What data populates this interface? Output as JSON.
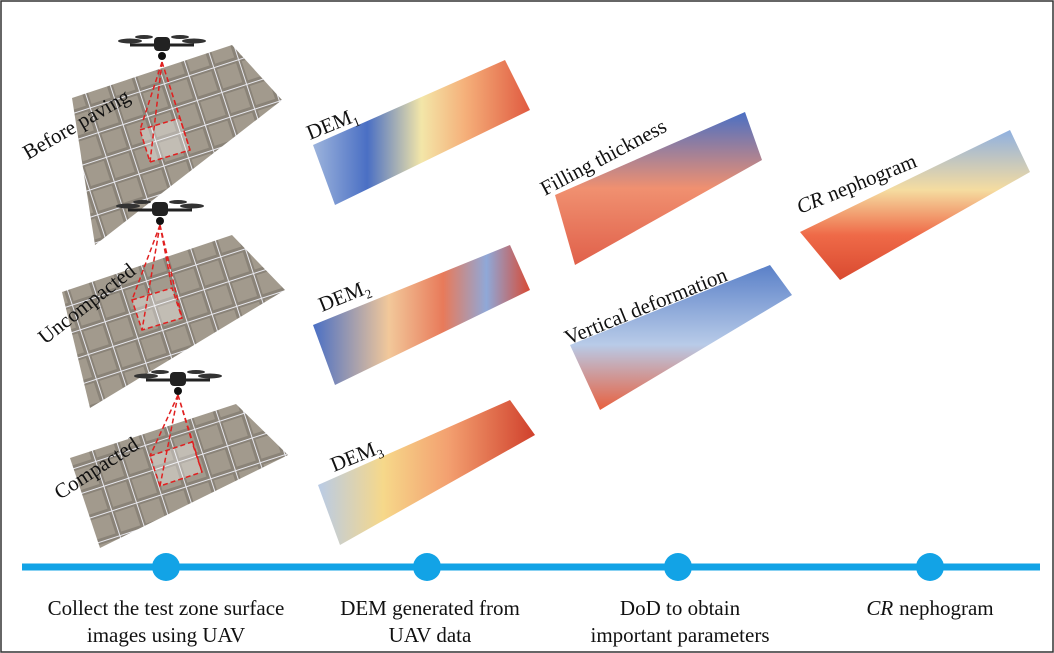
{
  "stages": [
    "Before paving",
    "Uncompacted",
    "Compacted"
  ],
  "dems": [
    {
      "text": "DEM",
      "sub": "1"
    },
    {
      "text": "DEM",
      "sub": "2"
    },
    {
      "text": "DEM",
      "sub": "3"
    }
  ],
  "dod": [
    "Filling thickness",
    "Vertical deformation"
  ],
  "nephogram": {
    "italic": "CR",
    "text": "nephogram"
  },
  "timeline": [
    {
      "lines": [
        "Collect the test zone surface",
        "images using UAV"
      ]
    },
    {
      "lines": [
        "DEM generated from",
        "UAV data"
      ]
    },
    {
      "lines": [
        "DoD to obtain",
        "important parameters"
      ]
    },
    {
      "italic": "CR",
      "lines": [
        "nephogram"
      ]
    }
  ]
}
